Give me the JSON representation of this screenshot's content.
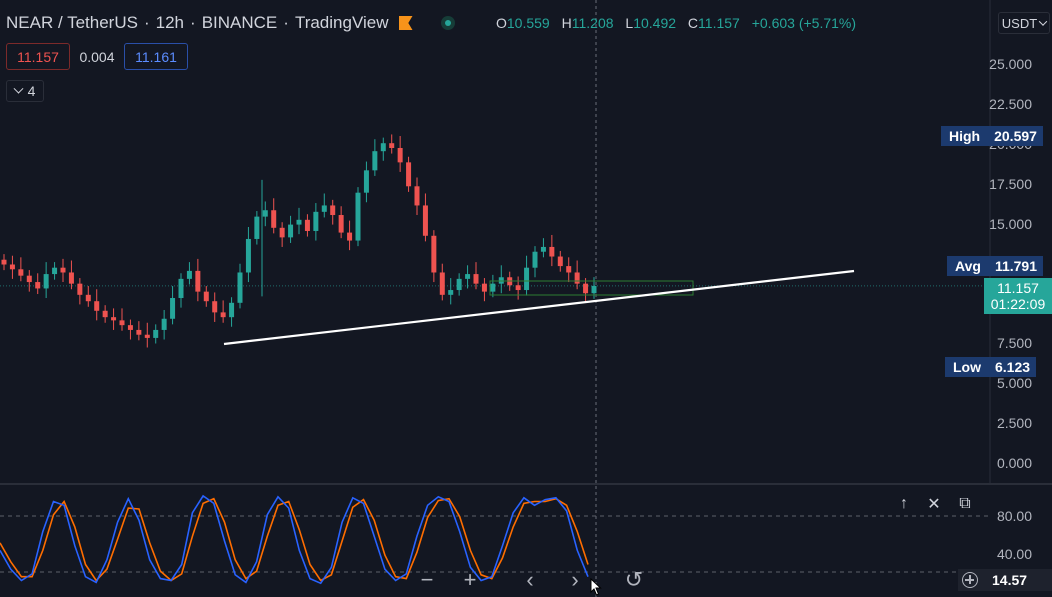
{
  "header": {
    "pair": "NEAR / TetherUS",
    "interval": "12h",
    "exchange": "BINANCE",
    "platform": "TradingView",
    "ohlc": {
      "o_label": "O",
      "o_value": "10.559",
      "h_label": "H",
      "h_value": "11.208",
      "l_label": "L",
      "l_value": "10.492",
      "c_label": "C",
      "c_value": "11.157",
      "change": "+0.603 (+5.71%)"
    }
  },
  "trade": {
    "sell": "11.157",
    "spread": "0.004",
    "buy": "11.161"
  },
  "indicators_toggle": {
    "count": "4"
  },
  "currency_selector": "USDT",
  "price_axis": [
    "25.000",
    "22.500",
    "20.000",
    "17.500",
    "15.000",
    "7.500",
    "5.000",
    "2.500",
    "0.000"
  ],
  "stats": {
    "high_label": "High",
    "high_value": "20.597",
    "avg_label": "Avg",
    "avg_value": "11.791",
    "low_label": "Low",
    "low_value": "6.123"
  },
  "last_price": {
    "price": "11.157",
    "countdown": "01:22:09"
  },
  "oscillator": {
    "axis": [
      "80.00",
      "40.00"
    ],
    "value": "14.57",
    "buttons": {
      "up": "↑",
      "close": "✕",
      "maximize": "⧉"
    }
  },
  "nav": {
    "zoom_out": "−",
    "zoom_in": "+",
    "prev": "‹",
    "next": "›",
    "reset": "↺"
  },
  "colors": {
    "bg": "#131722",
    "up": "#26a69a",
    "down": "#ef5350",
    "k_line": "#2962ff",
    "d_line": "#ff6d00",
    "trendline": "#ffffff"
  },
  "chart_data": {
    "type": "candlestick",
    "ylim": [
      0,
      27
    ],
    "approx_closes": [
      12.5,
      12.2,
      11.8,
      11.4,
      11.0,
      11.9,
      12.3,
      12.0,
      11.3,
      10.6,
      10.2,
      9.6,
      9.2,
      9.0,
      8.7,
      8.4,
      8.1,
      7.9,
      8.4,
      9.1,
      10.4,
      11.6,
      12.1,
      10.8,
      10.2,
      9.5,
      9.2,
      10.1,
      12.0,
      14.1,
      15.5,
      15.9,
      14.8,
      14.2,
      15.0,
      15.3,
      14.6,
      15.8,
      16.2,
      15.6,
      14.5,
      14.0,
      17.0,
      18.4,
      19.6,
      20.1,
      19.8,
      18.9,
      17.4,
      16.2,
      14.3,
      12.0,
      10.6,
      10.9,
      11.6,
      11.9,
      11.3,
      10.8,
      11.3,
      11.7,
      11.2,
      10.9,
      12.3,
      13.3,
      13.6,
      13.0,
      12.4,
      12.0,
      11.3,
      10.7,
      11.16
    ],
    "trendline": {
      "from": 7.2,
      "to_mid": 10.5,
      "to_end": 12.4
    },
    "stoch_rsi_k": [
      40,
      20,
      8,
      15,
      60,
      92,
      88,
      45,
      12,
      6,
      30,
      70,
      95,
      72,
      30,
      10,
      8,
      25,
      80,
      98,
      90,
      50,
      14,
      6,
      28,
      78,
      97,
      85,
      40,
      10,
      5,
      22,
      70,
      96,
      90,
      55,
      20,
      8,
      15,
      55,
      88,
      97,
      92,
      60,
      22,
      8,
      12,
      45,
      80,
      96,
      88,
      94,
      96,
      82,
      40,
      12
    ],
    "stoch_rsi_d": [
      48,
      28,
      12,
      12,
      40,
      78,
      92,
      65,
      25,
      8,
      20,
      52,
      85,
      84,
      48,
      18,
      8,
      15,
      55,
      90,
      95,
      70,
      30,
      10,
      18,
      55,
      88,
      92,
      62,
      25,
      8,
      14,
      50,
      86,
      94,
      72,
      35,
      12,
      10,
      38,
      75,
      93,
      95,
      76,
      40,
      14,
      10,
      32,
      65,
      90,
      92,
      92,
      95,
      88,
      60,
      25
    ]
  }
}
